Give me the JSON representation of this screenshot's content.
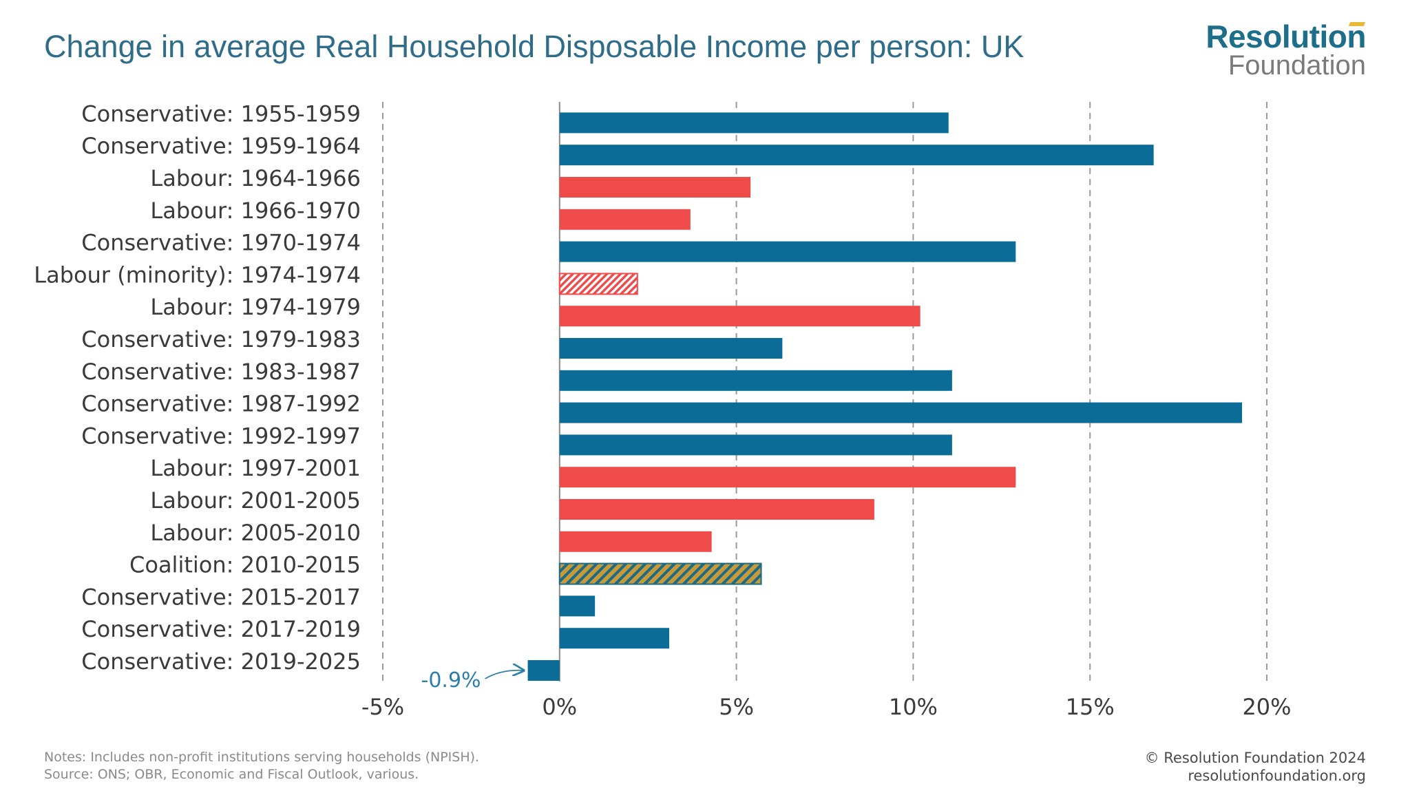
{
  "header": {
    "title": "Change in average Real Household Disposable Income per person: UK"
  },
  "logo": {
    "line1": "Resolution",
    "line2": "Foundation",
    "accent": "#e8b83a"
  },
  "colors": {
    "conservative": "#0a6c97",
    "labour": "#ef4b4b",
    "coalition_fill": "#c69a3a",
    "coalition_stripe": "#1b6a86",
    "grid": "#9a9a9a",
    "callout": "#2b7fa8"
  },
  "chart_data": {
    "type": "bar",
    "orientation": "horizontal",
    "title": "Change in average Real Household Disposable Income per person: UK",
    "xlabel": "",
    "ylabel": "",
    "xlim": [
      -5,
      20
    ],
    "xticks": [
      -5,
      0,
      5,
      10,
      15,
      20
    ],
    "xtick_labels": [
      "-5%",
      "0%",
      "5%",
      "10%",
      "15%",
      "20%"
    ],
    "grid": "vertical dashed",
    "categories": [
      "Conservative: 1955-1959",
      "Conservative: 1959-1964",
      "Labour: 1964-1966",
      "Labour: 1966-1970",
      "Conservative: 1970-1974",
      "Labour (minority): 1974-1974",
      "Labour: 1974-1979",
      "Conservative: 1979-1983",
      "Conservative: 1983-1987",
      "Conservative: 1987-1992",
      "Conservative: 1992-1997",
      "Labour: 1997-2001",
      "Labour: 2001-2005",
      "Labour: 2005-2010",
      "Coalition: 2010-2015",
      "Conservative: 2015-2017",
      "Conservative: 2017-2019",
      "Conservative: 2019-2025"
    ],
    "values": [
      11.0,
      16.8,
      5.4,
      3.7,
      12.9,
      2.2,
      10.2,
      6.3,
      11.1,
      19.3,
      11.1,
      12.9,
      8.9,
      4.3,
      5.7,
      1.0,
      3.1,
      -0.9
    ],
    "parties": [
      "conservative",
      "conservative",
      "labour",
      "labour",
      "conservative",
      "labour-minority",
      "labour",
      "conservative",
      "conservative",
      "conservative",
      "conservative",
      "labour",
      "labour",
      "labour",
      "coalition",
      "conservative",
      "conservative",
      "conservative"
    ],
    "annotations": [
      {
        "category": "Conservative: 2019-2025",
        "text": "-0.9%"
      }
    ]
  },
  "footer": {
    "notes": "Notes: Includes non-profit institutions serving households (NPISH).",
    "source": "Source: ONS; OBR, Economic and Fiscal Outlook, various.",
    "copyright": "© Resolution Foundation 2024",
    "website": "resolutionfoundation.org"
  }
}
